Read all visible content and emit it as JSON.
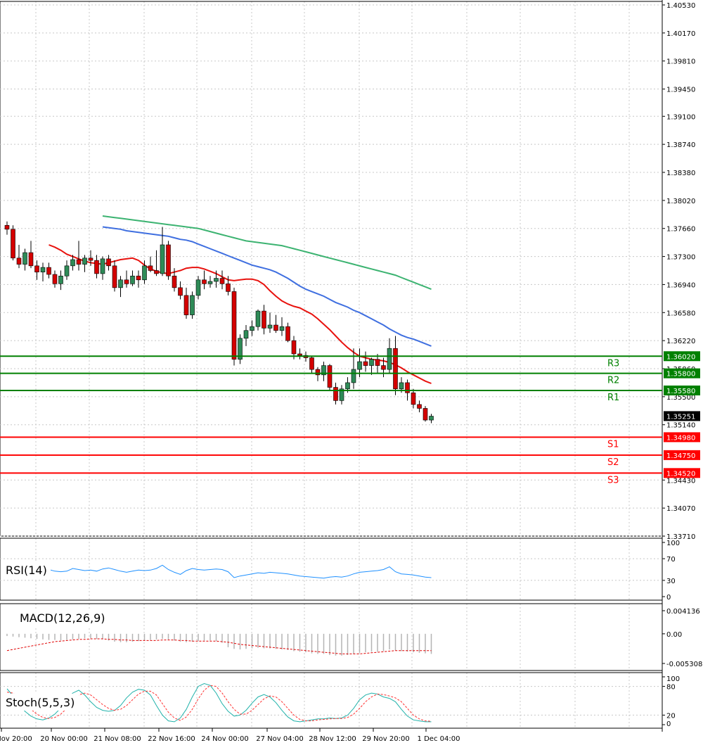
{
  "colors": {
    "background": "#ffffff",
    "grid": "#c8c8c8",
    "candle_up": "#2e8b57",
    "candle_down": "#d40000",
    "ma_fast": "#e8120e",
    "ma_mid": "#3f6fe0",
    "ma_slow": "#3cb371",
    "resistance": "#008000",
    "support": "#ff0000",
    "rsi_line": "#1e90ff",
    "macd_hist": "#b4b4b4",
    "macd_signal": "#e00000",
    "stoch_main": "#20b2aa",
    "stoch_signal": "#ff3030",
    "current_price_bg": "#000000"
  },
  "chart_data": [
    {
      "type": "candlestick",
      "title": "",
      "ylim": [
        1.3371,
        1.4053
      ],
      "y_ticks": [
        "1.40530",
        "1.40170",
        "1.39810",
        "1.39450",
        "1.39100",
        "1.38740",
        "1.38380",
        "1.38020",
        "1.37660",
        "1.37300",
        "1.36940",
        "1.36580",
        "1.36220",
        "1.35860",
        "1.35500",
        "1.35140",
        "1.34430",
        "1.34070",
        "1.33710"
      ],
      "x_tick_labels": [
        "Nov 20:00",
        "20 Nov 00:00",
        "21 Nov 08:00",
        "22 Nov 16:00",
        "24 Nov 00:00",
        "27 Nov 04:00",
        "28 Nov 12:00",
        "29 Nov 20:00",
        "1 Dec 04:00"
      ],
      "candles": [
        [
          1.377,
          1.3775,
          1.3758,
          1.3765
        ],
        [
          1.3765,
          1.377,
          1.3725,
          1.3728
        ],
        [
          1.3728,
          1.3745,
          1.3715,
          1.372
        ],
        [
          1.372,
          1.374,
          1.3712,
          1.3735
        ],
        [
          1.3735,
          1.375,
          1.3715,
          1.3718
        ],
        [
          1.3718,
          1.3725,
          1.37,
          1.371
        ],
        [
          1.371,
          1.3722,
          1.3698,
          1.3716
        ],
        [
          1.3716,
          1.3722,
          1.3702,
          1.3707
        ],
        [
          1.3707,
          1.3712,
          1.369,
          1.3695
        ],
        [
          1.3695,
          1.3712,
          1.3687,
          1.3705
        ],
        [
          1.3705,
          1.3725,
          1.37,
          1.3718
        ],
        [
          1.3718,
          1.3732,
          1.3712,
          1.3726
        ],
        [
          1.3726,
          1.375,
          1.3712,
          1.372
        ],
        [
          1.372,
          1.3732,
          1.371,
          1.3728
        ],
        [
          1.3728,
          1.3738,
          1.3718,
          1.3725
        ],
        [
          1.3725,
          1.3732,
          1.3702,
          1.3708
        ],
        [
          1.3708,
          1.373,
          1.37,
          1.3727
        ],
        [
          1.3727,
          1.3732,
          1.3712,
          1.3718
        ],
        [
          1.3718,
          1.3725,
          1.3685,
          1.369
        ],
        [
          1.369,
          1.3705,
          1.3678,
          1.37
        ],
        [
          1.37,
          1.3712,
          1.369,
          1.3695
        ],
        [
          1.3695,
          1.3712,
          1.3692,
          1.3705
        ],
        [
          1.3705,
          1.3712,
          1.369,
          1.37
        ],
        [
          1.37,
          1.3725,
          1.3695,
          1.3718
        ],
        [
          1.3718,
          1.373,
          1.371,
          1.3712
        ],
        [
          1.3712,
          1.3738,
          1.3705,
          1.3708
        ],
        [
          1.3708,
          1.3768,
          1.3705,
          1.3745
        ],
        [
          1.3745,
          1.375,
          1.37,
          1.3705
        ],
        [
          1.3705,
          1.3715,
          1.3685,
          1.369
        ],
        [
          1.369,
          1.3698,
          1.3675,
          1.368
        ],
        [
          1.368,
          1.369,
          1.365,
          1.3655
        ],
        [
          1.3655,
          1.3685,
          1.365,
          1.368
        ],
        [
          1.368,
          1.3705,
          1.3675,
          1.37
        ],
        [
          1.37,
          1.3712,
          1.3688,
          1.3695
        ],
        [
          1.3695,
          1.3705,
          1.369,
          1.3698
        ],
        [
          1.3698,
          1.3712,
          1.369,
          1.3702
        ],
        [
          1.3702,
          1.3712,
          1.3688,
          1.3695
        ],
        [
          1.3695,
          1.3705,
          1.368,
          1.3685
        ],
        [
          1.3685,
          1.369,
          1.359,
          1.3598
        ],
        [
          1.3598,
          1.363,
          1.3592,
          1.3625
        ],
        [
          1.3625,
          1.3642,
          1.3615,
          1.3635
        ],
        [
          1.3635,
          1.3648,
          1.3628,
          1.364
        ],
        [
          1.364,
          1.3662,
          1.3635,
          1.366
        ],
        [
          1.366,
          1.3668,
          1.363,
          1.3638
        ],
        [
          1.3638,
          1.3658,
          1.3632,
          1.3642
        ],
        [
          1.3642,
          1.3655,
          1.3632,
          1.3635
        ],
        [
          1.3635,
          1.3652,
          1.3628,
          1.364
        ],
        [
          1.364,
          1.3645,
          1.362,
          1.3622
        ],
        [
          1.3622,
          1.3628,
          1.3598,
          1.3605
        ],
        [
          1.3605,
          1.3612,
          1.3598,
          1.3603
        ],
        [
          1.3603,
          1.3608,
          1.3595,
          1.36
        ],
        [
          1.36,
          1.3602,
          1.358,
          1.3585
        ],
        [
          1.3585,
          1.3588,
          1.357,
          1.3578
        ],
        [
          1.3578,
          1.3595,
          1.357,
          1.359
        ],
        [
          1.359,
          1.3592,
          1.3558,
          1.3562
        ],
        [
          1.3562,
          1.3568,
          1.354,
          1.3545
        ],
        [
          1.3545,
          1.3565,
          1.354,
          1.356
        ],
        [
          1.356,
          1.3575,
          1.3555,
          1.3568
        ],
        [
          1.3568,
          1.3612,
          1.356,
          1.3585
        ],
        [
          1.3585,
          1.3612,
          1.3575,
          1.3595
        ],
        [
          1.3595,
          1.3608,
          1.3582,
          1.359
        ],
        [
          1.359,
          1.36,
          1.3578,
          1.3598
        ],
        [
          1.3598,
          1.3605,
          1.358,
          1.359
        ],
        [
          1.359,
          1.36,
          1.3575,
          1.3585
        ],
        [
          1.3585,
          1.3625,
          1.358,
          1.3612
        ],
        [
          1.3612,
          1.3628,
          1.3552,
          1.356
        ],
        [
          1.356,
          1.3575,
          1.3555,
          1.3568
        ],
        [
          1.3568,
          1.3572,
          1.3545,
          1.3555
        ],
        [
          1.3555,
          1.356,
          1.3535,
          1.354
        ],
        [
          1.354,
          1.3545,
          1.353,
          1.3535
        ],
        [
          1.3535,
          1.3538,
          1.3518,
          1.352
        ],
        [
          1.352,
          1.3528,
          1.3516,
          1.3525
        ]
      ],
      "series": [
        {
          "values": [
            1.3745,
            1.3742,
            1.3738,
            1.3733,
            1.373,
            1.3727,
            1.3724,
            1.3722,
            1.3721,
            1.372,
            1.3722,
            1.3724,
            1.3726,
            1.3727,
            1.3728,
            1.3725,
            1.3719,
            1.3714,
            1.3711,
            1.3709,
            1.3708,
            1.371,
            1.3712,
            1.3715,
            1.3716,
            1.3716,
            1.3714,
            1.3711,
            1.3708,
            1.3704,
            1.37,
            1.3699,
            1.37,
            1.3701,
            1.3701,
            1.3699,
            1.3694,
            1.3686,
            1.3679,
            1.3673,
            1.3669,
            1.3666,
            1.3664,
            1.366,
            1.3656,
            1.365,
            1.3643,
            1.3636,
            1.3628,
            1.362,
            1.3613,
            1.3607,
            1.3602,
            1.36,
            1.3598,
            1.3597,
            1.3596,
            1.3594,
            1.3591,
            1.3587,
            1.3582,
            1.3578,
            1.3574,
            1.357,
            1.3567
          ]
        },
        {
          "values": [
            1.3768,
            1.3767,
            1.3766,
            1.3765,
            1.3763,
            1.3762,
            1.3761,
            1.376,
            1.3759,
            1.3758,
            1.3757,
            1.3756,
            1.3754,
            1.3752,
            1.3751,
            1.3749,
            1.3746,
            1.3743,
            1.374,
            1.3737,
            1.3734,
            1.3731,
            1.3728,
            1.3725,
            1.3722,
            1.3719,
            1.3717,
            1.3715,
            1.3713,
            1.371,
            1.3706,
            1.3702,
            1.3697,
            1.3692,
            1.3688,
            1.3685,
            1.3682,
            1.3679,
            1.3675,
            1.3671,
            1.3668,
            1.3665,
            1.3661,
            1.3658,
            1.3654,
            1.365,
            1.3646,
            1.3642,
            1.3637,
            1.3633,
            1.3629,
            1.3626,
            1.3624,
            1.3621,
            1.3618,
            1.3615
          ]
        },
        {
          "values": [
            1.3782,
            1.3781,
            1.378,
            1.3779,
            1.3778,
            1.3777,
            1.3776,
            1.3775,
            1.3774,
            1.3773,
            1.3772,
            1.3771,
            1.377,
            1.3769,
            1.3768,
            1.3767,
            1.3766,
            1.3764,
            1.3762,
            1.376,
            1.3758,
            1.3756,
            1.3754,
            1.3752,
            1.375,
            1.3749,
            1.3748,
            1.3747,
            1.3746,
            1.3745,
            1.3744,
            1.3742,
            1.374,
            1.3738,
            1.3736,
            1.3734,
            1.3732,
            1.373,
            1.3728,
            1.3726,
            1.3724,
            1.3722,
            1.372,
            1.3718,
            1.3716,
            1.3714,
            1.3712,
            1.371,
            1.3708,
            1.3706,
            1.3703,
            1.37,
            1.3697,
            1.3694,
            1.3691,
            1.3688
          ]
        }
      ],
      "levels": [
        {
          "name": "R3",
          "value": "1.36020"
        },
        {
          "name": "R2",
          "value": "1.35800"
        },
        {
          "name": "R1",
          "value": "1.35580"
        },
        {
          "name": "S1",
          "value": "1.34980"
        },
        {
          "name": "S2",
          "value": "1.34750"
        },
        {
          "name": "S3",
          "value": "1.34520"
        }
      ],
      "current_price": "1.35251",
      "grid": true
    },
    {
      "type": "line",
      "title": "RSI(14)",
      "ylim": [
        0,
        100
      ],
      "y_ticks": [
        "100",
        "70",
        "30",
        "0"
      ],
      "series": [
        {
          "values": [
            55,
            54,
            52,
            53,
            50,
            48,
            49,
            50,
            47,
            46,
            47,
            52,
            50,
            48,
            49,
            47,
            51,
            53,
            50,
            47,
            45,
            47,
            49,
            48,
            49,
            52,
            58,
            50,
            45,
            41,
            48,
            52,
            50,
            49,
            50,
            51,
            50,
            46,
            35,
            38,
            40,
            42,
            44,
            43,
            45,
            44,
            43,
            42,
            40,
            38,
            37,
            36,
            35,
            34,
            36,
            37,
            36,
            38,
            42,
            45,
            46,
            47,
            48,
            50,
            55,
            46,
            42,
            41,
            40,
            38,
            36,
            35
          ]
        }
      ]
    },
    {
      "type": "bar",
      "title": "MACD(12,26,9)",
      "ylim": [
        -0.005308,
        0.004136
      ],
      "y_ticks": [
        "0.004136",
        "0.00",
        "-0.005308"
      ],
      "series": [
        {
          "values": [
            -0.0004,
            -0.0005,
            -0.0006,
            -0.0007,
            -0.0008,
            -0.0009,
            -0.001,
            -0.0011,
            -0.0011,
            -0.0012,
            -0.0011,
            -0.001,
            -0.0009,
            -0.0008,
            -0.0008,
            -0.0009,
            -0.001,
            -0.0012,
            -0.0014,
            -0.0015,
            -0.0015,
            -0.0014,
            -0.0013,
            -0.0012,
            -0.0011,
            -0.001,
            -0.0009,
            -0.001,
            -0.0012,
            -0.0014,
            -0.0015,
            -0.0014,
            -0.0013,
            -0.0012,
            -0.0012,
            -0.0013,
            -0.0016,
            -0.0024,
            -0.0027,
            -0.0028,
            -0.0027,
            -0.0026,
            -0.0025,
            -0.0026,
            -0.0026,
            -0.0027,
            -0.0028,
            -0.0029,
            -0.0031,
            -0.0032,
            -0.0033,
            -0.0035,
            -0.0036,
            -0.0036,
            -0.0038,
            -0.0039,
            -0.0039,
            -0.0038,
            -0.0036,
            -0.0034,
            -0.0033,
            -0.0032,
            -0.0032,
            -0.0031,
            -0.0028,
            -0.003,
            -0.0031,
            -0.0032,
            -0.0033,
            -0.0034,
            -0.0035,
            -0.0036
          ]
        },
        {
          "values": [
            -0.003,
            -0.0028,
            -0.0026,
            -0.0024,
            -0.0022,
            -0.002,
            -0.0018,
            -0.0016,
            -0.0014,
            -0.0013,
            -0.0012,
            -0.0011,
            -0.001,
            -0.001,
            -0.0009,
            -0.0009,
            -0.0009,
            -0.001,
            -0.001,
            -0.0011,
            -0.0011,
            -0.0012,
            -0.0012,
            -0.0012,
            -0.0012,
            -0.0012,
            -0.0011,
            -0.0011,
            -0.0011,
            -0.0012,
            -0.0012,
            -0.0013,
            -0.0013,
            -0.0013,
            -0.0013,
            -0.0013,
            -0.0014,
            -0.0015,
            -0.0017,
            -0.0019,
            -0.002,
            -0.0021,
            -0.0022,
            -0.0023,
            -0.0024,
            -0.0025,
            -0.0026,
            -0.0027,
            -0.0028,
            -0.0029,
            -0.003,
            -0.0031,
            -0.0032,
            -0.0033,
            -0.0034,
            -0.0035,
            -0.0036,
            -0.0036,
            -0.0036,
            -0.0036,
            -0.0035,
            -0.0034,
            -0.0033,
            -0.0032,
            -0.0031,
            -0.003,
            -0.003,
            -0.003,
            -0.003,
            -0.003,
            -0.003,
            -0.003
          ]
        }
      ]
    },
    {
      "type": "line",
      "title": "Stoch(5,5,3)",
      "ylim": [
        0,
        100
      ],
      "y_ticks": [
        "100",
        "80",
        "20",
        "0"
      ],
      "series": [
        {
          "values": [
            75,
            60,
            42,
            28,
            18,
            12,
            10,
            14,
            22,
            35,
            52,
            66,
            72,
            62,
            48,
            36,
            30,
            28,
            30,
            40,
            56,
            68,
            74,
            72,
            62,
            40,
            20,
            8,
            6,
            14,
            32,
            58,
            80,
            86,
            82,
            66,
            44,
            28,
            18,
            20,
            30,
            45,
            58,
            63,
            58,
            46,
            30,
            16,
            8,
            6,
            8,
            10,
            12,
            12,
            14,
            13,
            14,
            20,
            34,
            52,
            62,
            66,
            64,
            58,
            55,
            48,
            32,
            18,
            10,
            8,
            6,
            6
          ]
        },
        {
          "values": [
            68,
            66,
            56,
            44,
            32,
            22,
            15,
            13,
            15,
            22,
            34,
            48,
            62,
            66,
            62,
            52,
            42,
            34,
            30,
            32,
            40,
            52,
            64,
            70,
            70,
            62,
            44,
            26,
            14,
            9,
            16,
            32,
            54,
            72,
            82,
            80,
            66,
            48,
            32,
            22,
            22,
            30,
            42,
            54,
            60,
            58,
            48,
            34,
            20,
            11,
            8,
            8,
            10,
            11,
            12,
            13,
            13,
            15,
            22,
            34,
            48,
            58,
            64,
            63,
            60,
            56,
            48,
            34,
            20,
            12,
            8,
            7
          ]
        }
      ]
    }
  ]
}
